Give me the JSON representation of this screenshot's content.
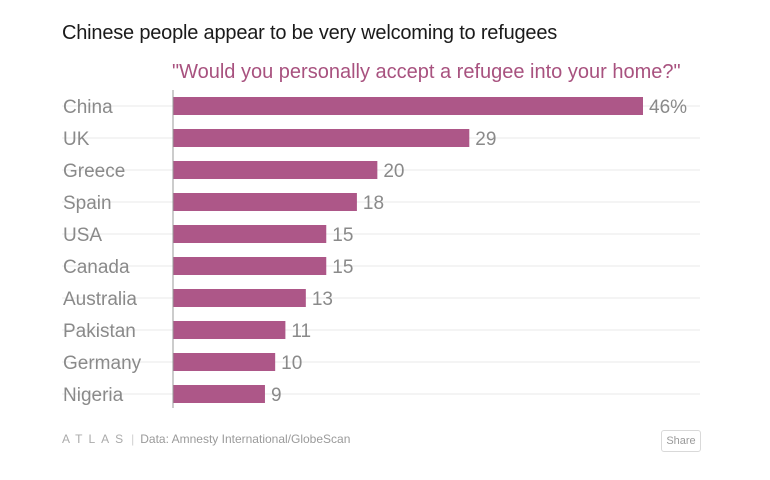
{
  "header": {
    "title": "Chinese people appear to be very welcoming to refugees",
    "subtitle": "\"Would you personally accept a refugee into your home?\""
  },
  "footer": {
    "logo": "ATLAS",
    "separator": "|",
    "source": "Data: Amnesty International/GlobeScan",
    "share_label": "Share"
  },
  "colors": {
    "bar": "#ad5788",
    "subtitle": "#a8527f",
    "grid": "#e8e8e8"
  },
  "chart_data": {
    "type": "bar",
    "orientation": "horizontal",
    "categories": [
      "China",
      "UK",
      "Greece",
      "Spain",
      "USA",
      "Canada",
      "Australia",
      "Pakistan",
      "Germany",
      "Nigeria"
    ],
    "values": [
      46,
      29,
      20,
      18,
      15,
      15,
      13,
      11,
      10,
      9
    ],
    "value_labels": [
      "46%",
      "29",
      "20",
      "18",
      "15",
      "15",
      "13",
      "11",
      "10",
      "9"
    ],
    "title": "Chinese people appear to be very welcoming to refugees",
    "subtitle": "\"Would you personally accept a refugee into your home?\"",
    "xlim": [
      0,
      46
    ],
    "grid": true
  }
}
